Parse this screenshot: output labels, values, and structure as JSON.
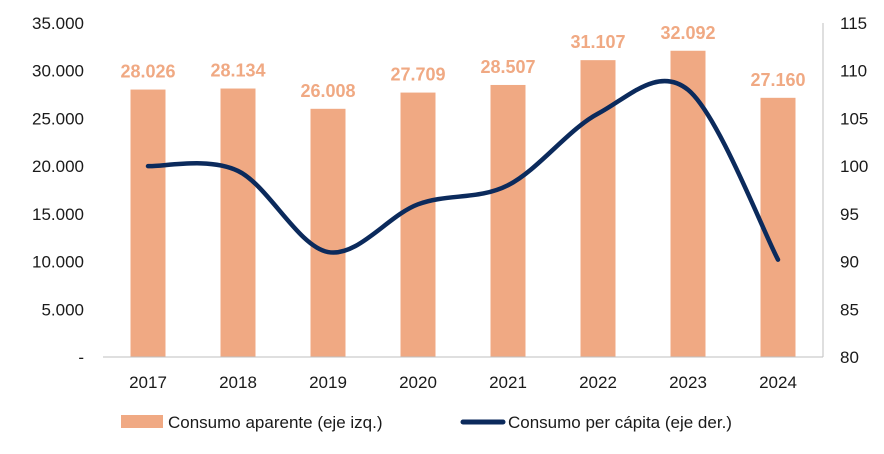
{
  "chart_data": {
    "type": "bar",
    "categories": [
      "2017",
      "2018",
      "2019",
      "2020",
      "2021",
      "2022",
      "2023",
      "2024"
    ],
    "series": [
      {
        "name": "Consumo aparente (eje izq.)",
        "type": "bar",
        "axis": "left",
        "color": "#F0A983",
        "values": [
          28026,
          28134,
          26008,
          27709,
          28507,
          31107,
          32092,
          27160
        ],
        "labels": [
          "28.026",
          "28.134",
          "26.008",
          "27.709",
          "28.507",
          "31.107",
          "32.092",
          "27.160"
        ]
      },
      {
        "name": "Consumo per cápita (eje der.)",
        "type": "line",
        "axis": "right",
        "color": "#0B2A5C",
        "values": [
          100,
          99.5,
          91,
          96,
          98,
          105.5,
          108,
          90.2
        ]
      }
    ],
    "left_axis": {
      "ylim": [
        0,
        35000
      ],
      "ticks": [
        0,
        5000,
        10000,
        15000,
        20000,
        25000,
        30000,
        35000
      ],
      "tick_labels": [
        "-",
        "5.000",
        "10.000",
        "15.000",
        "20.000",
        "25.000",
        "30.000",
        "35.000"
      ]
    },
    "right_axis": {
      "ylim": [
        80,
        115
      ],
      "ticks": [
        80,
        85,
        90,
        95,
        100,
        105,
        110,
        115
      ],
      "tick_labels": [
        "80",
        "85",
        "90",
        "95",
        "100",
        "105",
        "110",
        "115"
      ]
    },
    "legend": {
      "position": "bottom",
      "items": [
        "Consumo aparente (eje izq.)",
        "Consumo per cápita (eje der.)"
      ]
    },
    "grid": false
  }
}
